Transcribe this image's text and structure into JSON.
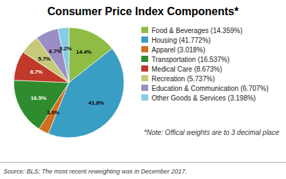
{
  "chart_data": {
    "type": "pie",
    "title": "Consumer Price Index Components*",
    "categories": [
      "Food & Beverages (14.359%)",
      "Housing (41.772%)",
      "Apparel (3.018%)",
      "Transportation (16.537%)",
      "Medical Care (8.673%)",
      "Recreation (5.737%)",
      "Education & Communication (6.707%)",
      "Other Goods & Services (3.198%)"
    ],
    "values": [
      14.359,
      41.772,
      3.018,
      16.537,
      8.673,
      5.737,
      6.707,
      3.198
    ],
    "value_labels": [
      "14.4%",
      "41.8%",
      "3.0%",
      "16.5%",
      "8.7%",
      "5.7%",
      "6.7%",
      "3.2%"
    ],
    "colors": [
      "#8fbc45",
      "#3a9dc3",
      "#d07020",
      "#2e8b2e",
      "#c0392b",
      "#c8c87a",
      "#9b8ec4",
      "#85cce6"
    ],
    "data_labels": true,
    "legend": "right",
    "annotations": [
      "*Note: Offical weights are to 3 decimal place",
      "Source: BLS; The most recent reweighting was in December 2017."
    ]
  }
}
